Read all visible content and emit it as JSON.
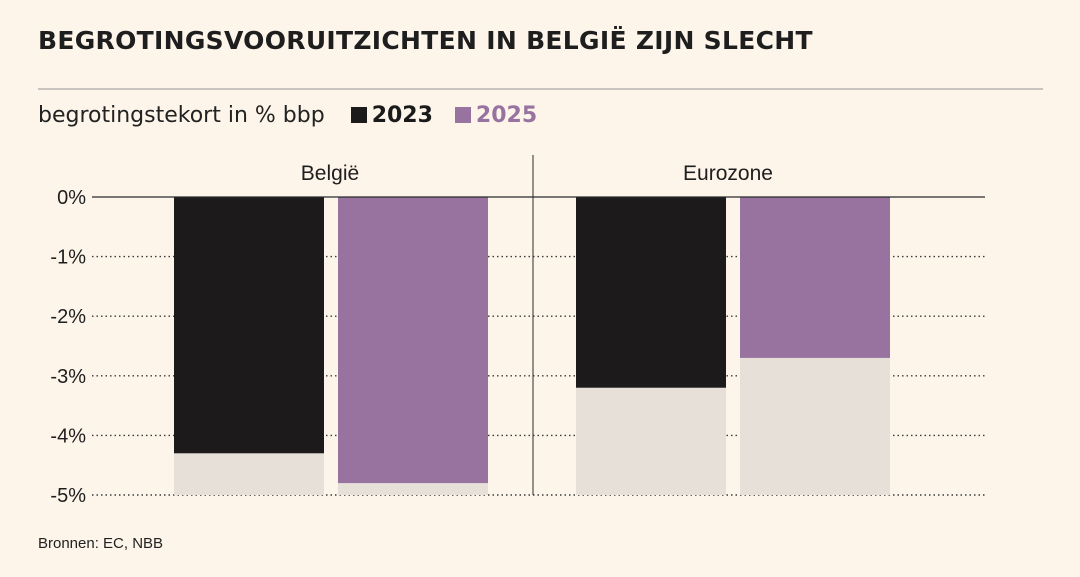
{
  "title": "BEGROTINGSVOORUITZICHTEN IN BELGIË ZIJN SLECHT",
  "subtitle": "begrotingstekort in % bbp",
  "source": "Bronnen: EC, NBB",
  "colors": {
    "s2023": "#1c1a1b",
    "s2025": "#98739f",
    "background_bar": "#e6e0d9",
    "page": "#fdf5ea"
  },
  "chart_data": {
    "type": "bar",
    "categories": [
      "België",
      "Eurozone"
    ],
    "series": [
      {
        "name": "2023",
        "values": [
          -4.3,
          -3.2
        ]
      },
      {
        "name": "2025",
        "values": [
          -4.8,
          -2.7
        ]
      }
    ],
    "ylim": [
      -5,
      0
    ],
    "yticks": [
      0,
      -1,
      -2,
      -3,
      -4,
      -5
    ],
    "ytick_labels": [
      "0%",
      "-1%",
      "-2%",
      "-3%",
      "-4%",
      "-5%"
    ],
    "grid": true,
    "legend_position": "top-left"
  }
}
